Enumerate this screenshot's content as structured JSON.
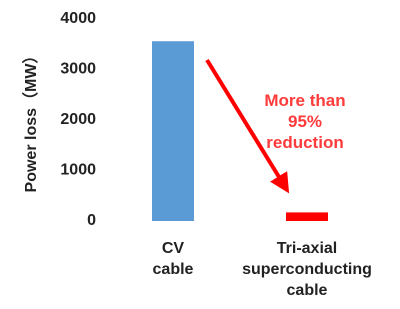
{
  "chart_data": {
    "type": "bar",
    "ylabel": "Power loss（MW）",
    "categories": [
      "CV\ncable",
      "Tri-axial\nsuperconducting\ncable"
    ],
    "values": [
      3560,
      170
    ],
    "colors": [
      "#5b9bd5",
      "#ff0000"
    ],
    "ylim": [
      0,
      4000
    ],
    "yticks": [
      0,
      1000,
      2000,
      3000,
      4000
    ],
    "annotation": "More than\n95%\nreduction"
  }
}
